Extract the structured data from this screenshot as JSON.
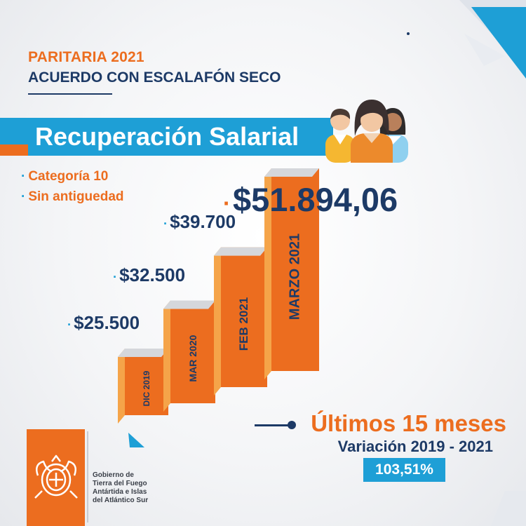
{
  "header": {
    "kicker": "PARITARIA 2021",
    "subtitle": "ACUERDO CON ESCALAFÓN SECO"
  },
  "banner": {
    "title": "Recuperación Salarial"
  },
  "conditions": [
    "Categoría 10",
    "Sin antiguedad"
  ],
  "chart_data": {
    "type": "bar",
    "categories": [
      "DIC 2019",
      "MAR 2020",
      "FEB 2021",
      "MARZO 2021"
    ],
    "values": [
      25500,
      32500,
      39700,
      51894.06
    ],
    "value_labels": [
      "$25.500",
      "$32.500",
      "$39.700",
      "$51.894,06"
    ],
    "title": "",
    "xlabel": "",
    "ylabel": "",
    "ylim": [
      0,
      55000
    ],
    "grid": false,
    "legend": "none"
  },
  "summary": {
    "period": "Últimos 15 meses",
    "variation_label": "Variación 2019 - 2021",
    "variation_value": "103,51%"
  },
  "logo": {
    "lines": [
      "Gobierno de",
      "Tierra del Fuego",
      "Antártida e Islas",
      "del Atlántico Sur"
    ]
  },
  "colors": {
    "orange": "#ec6d1f",
    "orange_light": "#f5a449",
    "navy": "#1d3a66",
    "blue": "#1e9fd6"
  },
  "icons": [
    "people-group-icon",
    "coat-of-arms-icon",
    "corner-triangle-icon"
  ]
}
